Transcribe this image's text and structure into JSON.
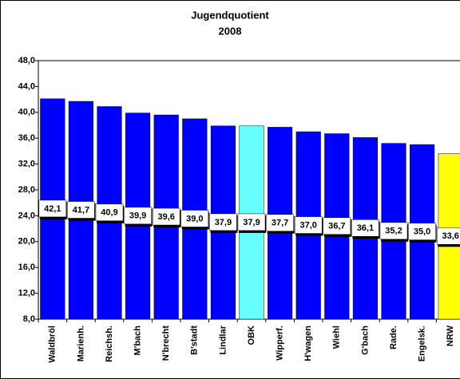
{
  "chart_data": {
    "type": "bar",
    "title": "Jugendquotient",
    "subtitle": "2008",
    "categories": [
      "Waldbröl",
      "Marienh.",
      "Reichsh.",
      "M'bach",
      "N'brecht",
      "B'stadt",
      "Lindlar",
      "OBK",
      "Wipperf.",
      "H'wagen",
      "Wiehl",
      "G'bach",
      "Rade.",
      "Engelsk.",
      "NRW"
    ],
    "values": [
      42.1,
      41.7,
      40.9,
      39.9,
      39.6,
      39.0,
      37.9,
      37.9,
      37.7,
      37.0,
      36.7,
      36.1,
      35.2,
      35.0,
      33.6
    ],
    "value_labels": [
      "42,1",
      "41,7",
      "40,9",
      "39,9",
      "39,6",
      "39,0",
      "37,9",
      "37,9",
      "37,7",
      "37,0",
      "36,7",
      "36,1",
      "35,2",
      "35,0",
      "33,6"
    ],
    "colors": [
      "#0000ff",
      "#0000ff",
      "#0000ff",
      "#0000ff",
      "#0000ff",
      "#0000ff",
      "#0000ff",
      "#66ffff",
      "#0000ff",
      "#0000ff",
      "#0000ff",
      "#0000ff",
      "#0000ff",
      "#0000ff",
      "#ffff00"
    ],
    "ylim": [
      8,
      48
    ],
    "yticks": [
      {
        "value": 8,
        "label": "8,0"
      },
      {
        "value": 12,
        "label": "12,0"
      },
      {
        "value": 16,
        "label": "16,0"
      },
      {
        "value": 20,
        "label": "20,0"
      },
      {
        "value": 24,
        "label": "24,0"
      },
      {
        "value": 28,
        "label": "28,0"
      },
      {
        "value": 32,
        "label": "32,0"
      },
      {
        "value": 36,
        "label": "36,0"
      },
      {
        "value": 40,
        "label": "40,0"
      },
      {
        "value": 44,
        "label": "44,0"
      },
      {
        "value": 48,
        "label": "48,0"
      }
    ],
    "grid": false
  }
}
